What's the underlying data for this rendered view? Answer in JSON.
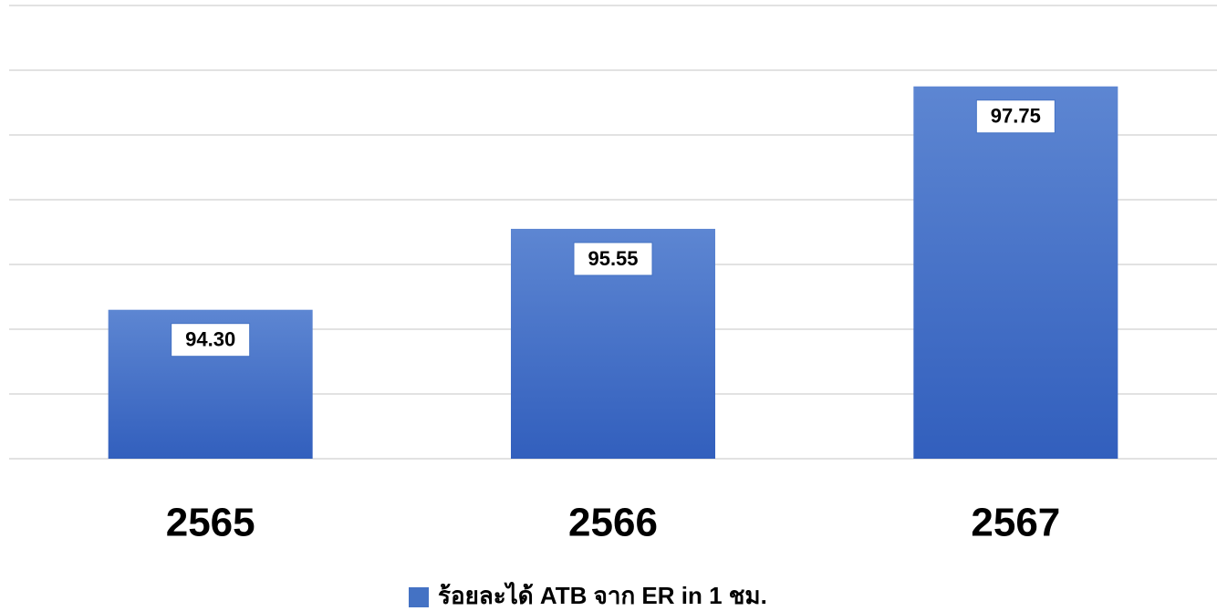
{
  "chart_data": {
    "type": "bar",
    "categories": [
      "2565",
      "2566",
      "2567"
    ],
    "series": [
      {
        "name": "ร้อยละได้ ATB จาก ER in 1 ชม.",
        "color": "#4472c4",
        "values": [
          94.3,
          95.55,
          97.75
        ],
        "value_labels": [
          "94.30",
          "95.55",
          "97.75"
        ]
      }
    ],
    "ylim": [
      92,
      99
    ],
    "yticks": [
      92,
      93,
      94,
      95,
      96,
      97,
      98,
      99
    ],
    "grid": true,
    "legend": "bottom"
  }
}
